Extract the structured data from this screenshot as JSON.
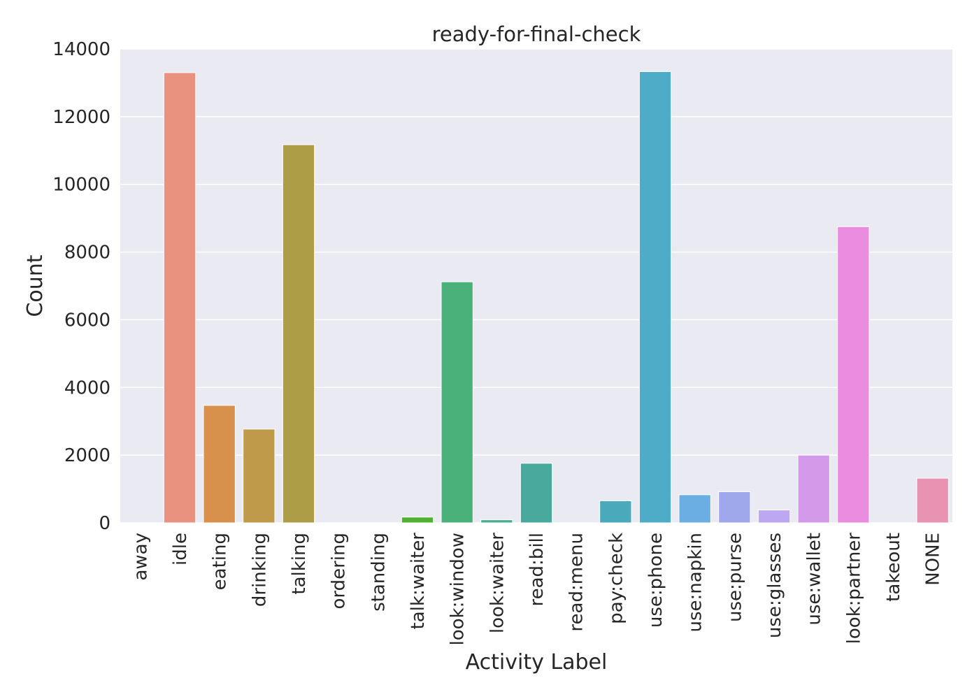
{
  "chart_data": {
    "type": "bar",
    "title": "ready-for-final-check",
    "xlabel": "Activity Label",
    "ylabel": "Count",
    "ylim": [
      0,
      14000
    ],
    "yticks": [
      0,
      2000,
      4000,
      6000,
      8000,
      10000,
      12000,
      14000
    ],
    "ytick_labels": [
      "0",
      "2000",
      "4000",
      "6000",
      "8000",
      "10000",
      "12000",
      "14000"
    ],
    "grid": true,
    "categories": [
      "away",
      "idle",
      "eating",
      "drinking",
      "talking",
      "ordering",
      "standing",
      "talk:waiter",
      "look:window",
      "look:waiter",
      "read:bill",
      "read:menu",
      "pay:check",
      "use:phone",
      "use:napkin",
      "use:purse",
      "use:glasses",
      "use:wallet",
      "look:partner",
      "takeout",
      "NONE"
    ],
    "values": [
      0,
      13300,
      3470,
      2770,
      11170,
      0,
      0,
      170,
      7120,
      90,
      1760,
      0,
      650,
      13330,
      830,
      920,
      380,
      2000,
      8750,
      0,
      1320
    ],
    "colors": [
      "#f77189",
      "#e8927f",
      "#d8914d",
      "#c09a4b",
      "#ae9d47",
      "#97a431",
      "#6eab31",
      "#50b131",
      "#4ab17a",
      "#4aad93",
      "#49a99d",
      "#4aa8ac",
      "#4aa9bb",
      "#4facc8",
      "#6aaee4",
      "#a0a8ec",
      "#bca7f0",
      "#d39ae9",
      "#ea8ce0",
      "#f38ac9",
      "#e993b3"
    ]
  }
}
